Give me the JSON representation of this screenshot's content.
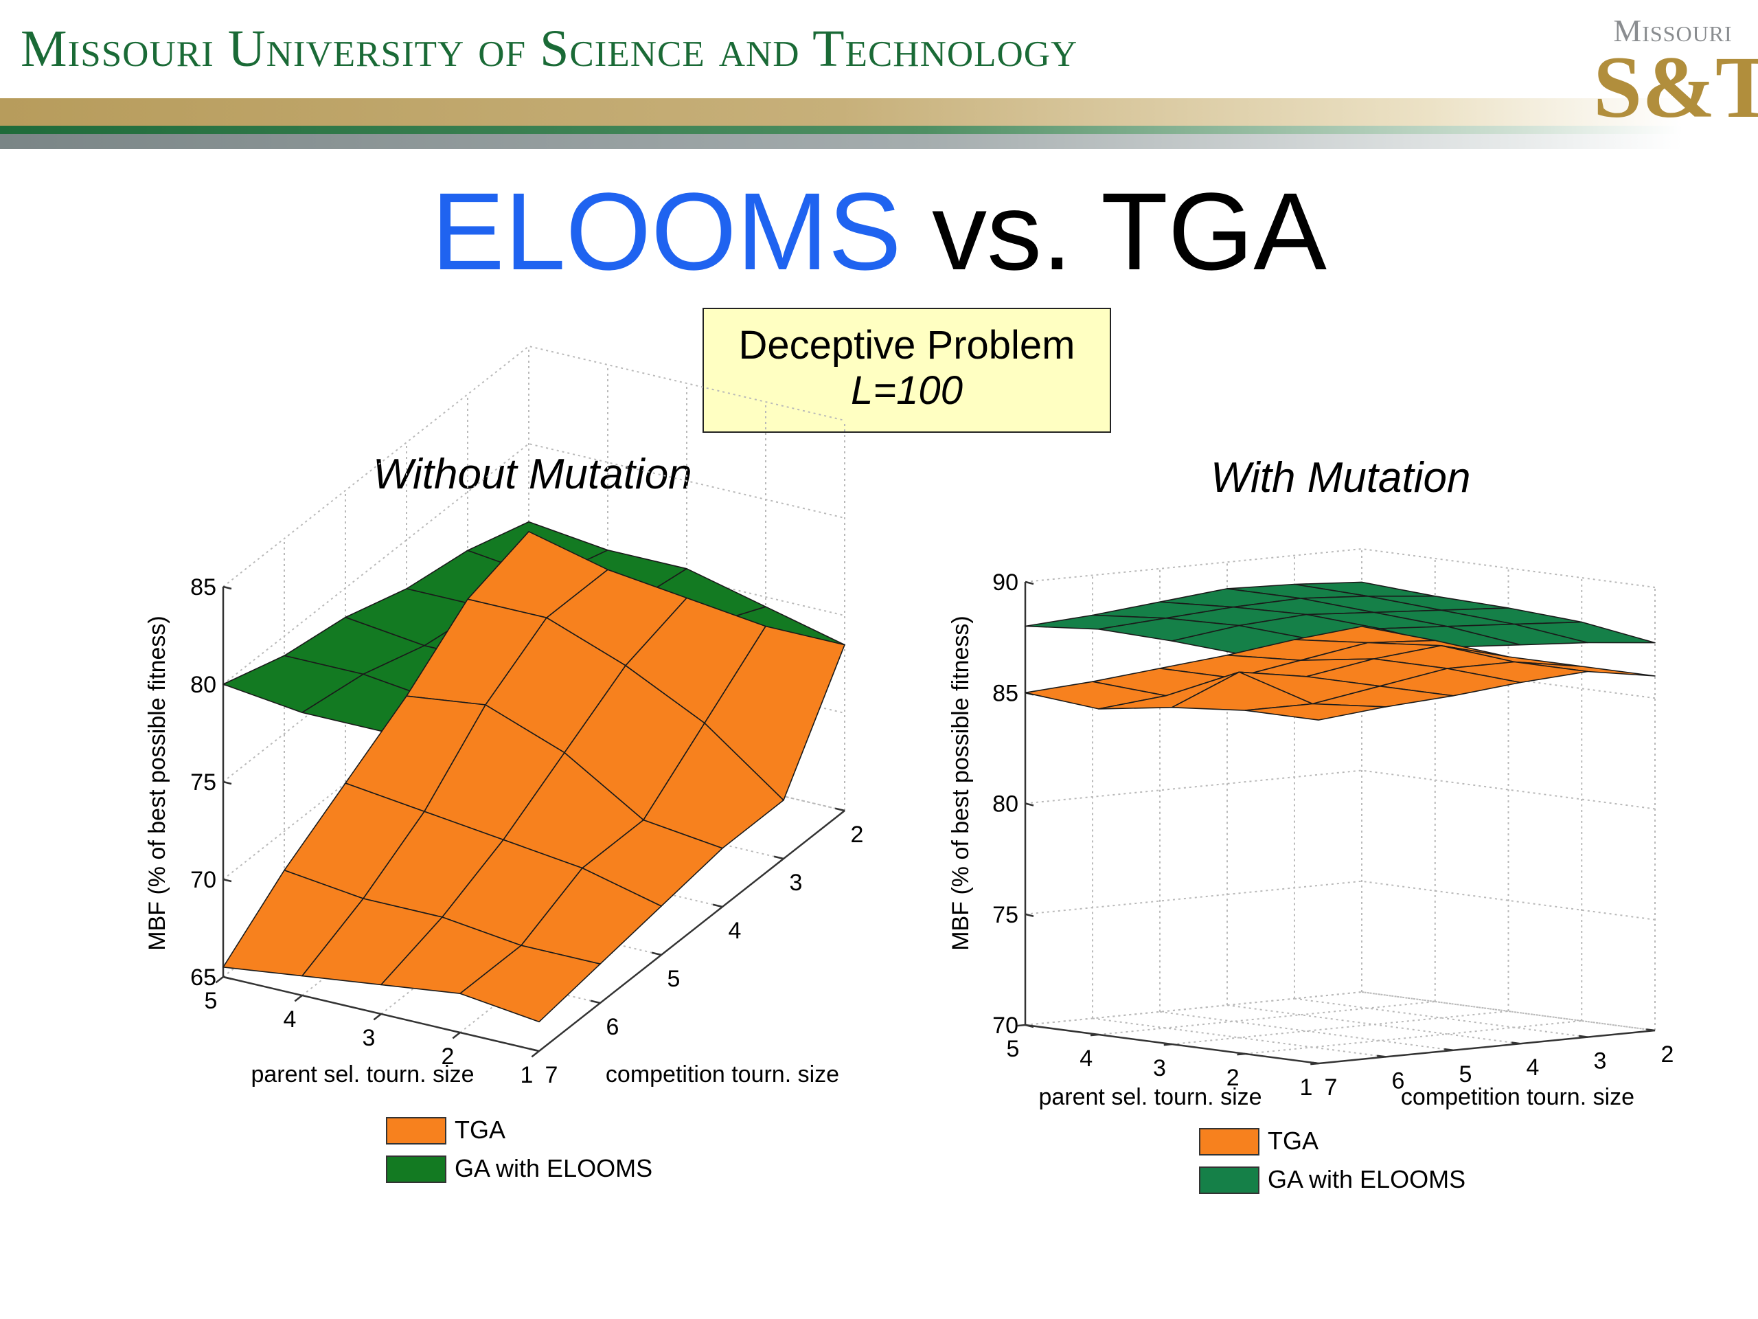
{
  "header": {
    "university": "Missouri University of Science and Technology",
    "logo_top": "Missouri",
    "logo_mark": "S&T"
  },
  "slide": {
    "title_part1": "ELOOMS",
    "title_part2": " vs. TGA",
    "subtitle_line1": "Deceptive Problem",
    "subtitle_line2": "L=100"
  },
  "colors": {
    "tga": "#f7811e",
    "elooms_left": "#137a22",
    "elooms_right": "#158048",
    "title_blue": "#1f63f0",
    "header_green": "#1a6a36"
  },
  "chart_data": [
    {
      "type": "surface",
      "title": "Without Mutation",
      "xlabel": "parent sel. tourn. size",
      "ylabel": "competition tourn. size",
      "zlabel": "MBF (% of best possible fitness)",
      "x_ticks": [
        5,
        4,
        3,
        2,
        1
      ],
      "y_ticks": [
        7,
        6,
        5,
        4,
        3,
        2
      ],
      "z_ticks": [
        65,
        70,
        75,
        80,
        85
      ],
      "zlim": [
        65,
        85
      ],
      "series": [
        {
          "name": "TGA",
          "surface": [
            [
              65.5,
              68.0,
              70.0,
              72.0,
              74.5,
              75.5
            ],
            [
              66.0,
              67.5,
              69.5,
              72.5,
              74.5,
              74.5
            ],
            [
              66.5,
              67.5,
              69.0,
              71.0,
              73.0,
              74.0
            ],
            [
              67.0,
              67.0,
              68.5,
              68.5,
              71.0,
              73.5
            ],
            [
              66.5,
              67.0,
              67.5,
              68.0,
              68.0,
              73.5
            ]
          ]
        },
        {
          "name": "GA with ELOOMS",
          "surface": [
            [
              80.0,
              79.0,
              78.5,
              77.5,
              77.0,
              76.0
            ],
            [
              79.5,
              79.0,
              78.0,
              77.5,
              76.5,
              75.5
            ],
            [
              79.5,
              78.5,
              78.0,
              77.0,
              76.0,
              75.5
            ],
            [
              79.0,
              78.5,
              77.5,
              76.5,
              76.0,
              74.5
            ],
            [
              78.5,
              78.0,
              77.0,
              76.5,
              75.5,
              73.5
            ]
          ]
        }
      ]
    },
    {
      "type": "surface",
      "title": "With Mutation",
      "xlabel": "parent sel. tourn. size",
      "ylabel": "competition tourn. size",
      "zlabel": "MBF (% of best possible fitness)",
      "x_ticks": [
        5,
        4,
        3,
        2,
        1
      ],
      "y_ticks": [
        7,
        6,
        5,
        4,
        3,
        2
      ],
      "z_ticks": [
        70,
        75,
        80,
        85,
        90
      ],
      "zlim": [
        70,
        90
      ],
      "series": [
        {
          "name": "TGA",
          "surface": [
            [
              85.0,
              85.2,
              85.5,
              85.8,
              86.2,
              86.5
            ],
            [
              84.7,
              85.0,
              85.5,
              86.0,
              86.5,
              86.3
            ],
            [
              85.2,
              86.5,
              86.0,
              86.5,
              86.8,
              86.0
            ],
            [
              85.5,
              85.5,
              86.0,
              86.5,
              86.5,
              86.0
            ],
            [
              85.5,
              85.8,
              86.0,
              86.3,
              86.5,
              86.0
            ]
          ]
        },
        {
          "name": "GA with ELOOMS",
          "surface": [
            [
              88.0,
              88.2,
              88.5,
              88.8,
              88.7,
              88.5
            ],
            [
              88.3,
              88.5,
              88.7,
              88.8,
              88.6,
              88.3
            ],
            [
              88.2,
              88.6,
              88.8,
              88.6,
              88.4,
              88.2
            ],
            [
              88.0,
              88.4,
              88.6,
              88.4,
              88.2,
              88.0
            ],
            [
              87.8,
              88.0,
              88.2,
              88.0,
              87.8,
              87.5
            ]
          ]
        }
      ]
    }
  ]
}
